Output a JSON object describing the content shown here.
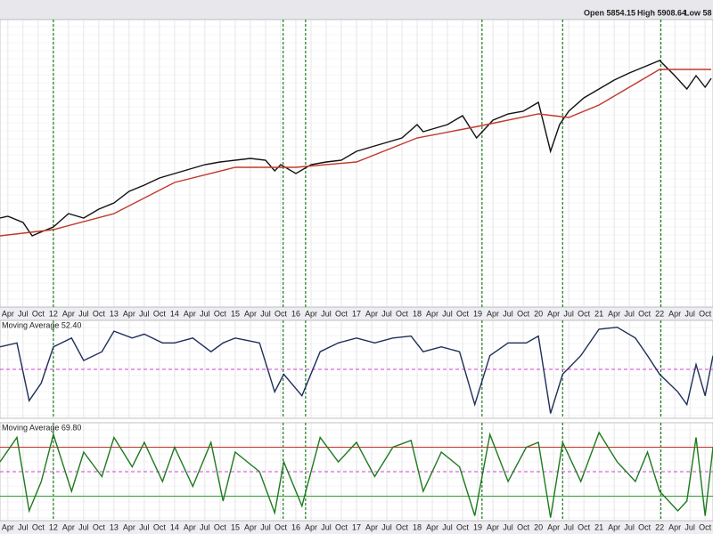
{
  "header": {
    "open": "Open 5854.15",
    "high": "High 5908.64",
    "low": "Low 58"
  },
  "chart_data": [
    {
      "type": "line",
      "xlim": [
        2011.12,
        2022.88
      ],
      "ylim": [
        1000,
        5000
      ],
      "xticks": [
        {
          "value": 2011.25,
          "label": "Apr"
        },
        {
          "value": 2011.5,
          "label": "Jul"
        },
        {
          "value": 2011.75,
          "label": "Oct"
        },
        {
          "value": 2012,
          "label": "12"
        },
        {
          "value": 2012.25,
          "label": "Apr"
        },
        {
          "value": 2012.5,
          "label": "Jul"
        },
        {
          "value": 2012.75,
          "label": "Oct"
        },
        {
          "value": 2013,
          "label": "13"
        },
        {
          "value": 2013.25,
          "label": "Apr"
        },
        {
          "value": 2013.5,
          "label": "Jul"
        },
        {
          "value": 2013.75,
          "label": "Oct"
        },
        {
          "value": 2014,
          "label": "14"
        },
        {
          "value": 2014.25,
          "label": "Apr"
        },
        {
          "value": 2014.5,
          "label": "Jul"
        },
        {
          "value": 2014.75,
          "label": "Oct"
        },
        {
          "value": 2015,
          "label": "15"
        },
        {
          "value": 2015.25,
          "label": "Apr"
        },
        {
          "value": 2015.5,
          "label": "Jul"
        },
        {
          "value": 2015.75,
          "label": "Oct"
        },
        {
          "value": 2016,
          "label": "16"
        },
        {
          "value": 2016.25,
          "label": "Apr"
        },
        {
          "value": 2016.5,
          "label": "Jul"
        },
        {
          "value": 2016.75,
          "label": "Oct"
        },
        {
          "value": 2017,
          "label": "17"
        },
        {
          "value": 2017.25,
          "label": "Apr"
        },
        {
          "value": 2017.5,
          "label": "Jul"
        },
        {
          "value": 2017.75,
          "label": "Oct"
        },
        {
          "value": 2018,
          "label": "18"
        },
        {
          "value": 2018.25,
          "label": "Apr"
        },
        {
          "value": 2018.5,
          "label": "Jul"
        },
        {
          "value": 2018.75,
          "label": "Oct"
        },
        {
          "value": 2019,
          "label": "19"
        },
        {
          "value": 2019.25,
          "label": "Apr"
        },
        {
          "value": 2019.5,
          "label": "Jul"
        },
        {
          "value": 2019.75,
          "label": "Oct"
        },
        {
          "value": 2020,
          "label": "20"
        },
        {
          "value": 2020.25,
          "label": "Apr"
        },
        {
          "value": 2020.5,
          "label": "Jul"
        },
        {
          "value": 2020.75,
          "label": "Oct"
        },
        {
          "value": 2021,
          "label": "21"
        },
        {
          "value": 2021.25,
          "label": "Apr"
        },
        {
          "value": 2021.5,
          "label": "Jul"
        },
        {
          "value": 2021.75,
          "label": "Oct"
        },
        {
          "value": 2022,
          "label": "22"
        },
        {
          "value": 2022.25,
          "label": "Apr"
        },
        {
          "value": 2022.5,
          "label": "Jul"
        },
        {
          "value": 2022.75,
          "label": "Oct"
        }
      ],
      "markers": [
        2012.0,
        2015.79,
        2016.16,
        2019.07,
        2020.4,
        2022.02
      ],
      "marker_color": "#1a7a1a",
      "series": [
        {
          "color": "#111111",
          "x": [
            2011.12,
            2011.25,
            2011.5,
            2011.65,
            2011.75,
            2012.0,
            2012.25,
            2012.5,
            2012.75,
            2013.0,
            2013.25,
            2013.5,
            2013.75,
            2014.0,
            2014.25,
            2014.5,
            2014.75,
            2015.0,
            2015.25,
            2015.5,
            2015.65,
            2015.75,
            2016.0,
            2016.25,
            2016.5,
            2016.75,
            2017.0,
            2017.25,
            2017.5,
            2017.75,
            2018.0,
            2018.1,
            2018.25,
            2018.5,
            2018.75,
            2018.98,
            2019.25,
            2019.5,
            2019.75,
            2020.0,
            2020.2,
            2020.35,
            2020.5,
            2020.75,
            2021.0,
            2021.25,
            2021.5,
            2021.75,
            2022.0,
            2022.25,
            2022.45,
            2022.6,
            2022.75,
            2022.85
          ],
          "values": [
            2238,
            2263,
            2176,
            1991,
            2028,
            2115,
            2300,
            2238,
            2362,
            2449,
            2610,
            2697,
            2796,
            2858,
            2920,
            2981,
            3019,
            3043,
            3068,
            3043,
            2895,
            2981,
            2858,
            2981,
            3019,
            3043,
            3167,
            3229,
            3291,
            3353,
            3539,
            3440,
            3477,
            3539,
            3663,
            3353,
            3601,
            3687,
            3724,
            3848,
            3167,
            3539,
            3724,
            3910,
            4034,
            4158,
            4257,
            4344,
            4430,
            4220,
            4034,
            4220,
            4059,
            4183
          ]
        },
        {
          "color": "#c0392b",
          "x": [
            2011.12,
            2012.0,
            2013.0,
            2014.0,
            2015.0,
            2016.0,
            2017.0,
            2018.0,
            2019.0,
            2020.0,
            2020.5,
            2021.0,
            2022.0,
            2022.85
          ],
          "values": [
            1991,
            2077,
            2300,
            2734,
            2944,
            2944,
            3019,
            3353,
            3514,
            3687,
            3638,
            3811,
            4306,
            4306
          ]
        }
      ]
    },
    {
      "type": "line",
      "title": "Moving Average 52.40",
      "ylim": [
        0,
        100
      ],
      "hlines": [
        {
          "value": 50,
          "color": "#d040d0"
        }
      ],
      "series": [
        {
          "color": "#1f2f5a",
          "x": [
            2011.12,
            2011.4,
            2011.6,
            2011.8,
            2012.0,
            2012.3,
            2012.5,
            2012.8,
            2013.0,
            2013.3,
            2013.5,
            2013.8,
            2014.0,
            2014.3,
            2014.6,
            2014.8,
            2015.0,
            2015.4,
            2015.65,
            2015.8,
            2016.1,
            2016.4,
            2016.7,
            2017.0,
            2017.3,
            2017.6,
            2017.9,
            2018.1,
            2018.4,
            2018.7,
            2018.95,
            2019.2,
            2019.5,
            2019.8,
            2020.0,
            2020.2,
            2020.4,
            2020.7,
            2021.0,
            2021.3,
            2021.6,
            2021.8,
            2022.0,
            2022.3,
            2022.45,
            2022.6,
            2022.75,
            2022.88
          ],
          "values": [
            73,
            77,
            18,
            36,
            73,
            82,
            59,
            68,
            89,
            82,
            86,
            77,
            77,
            82,
            68,
            77,
            82,
            77,
            27,
            45,
            23,
            68,
            77,
            82,
            77,
            82,
            84,
            68,
            73,
            68,
            14,
            64,
            77,
            77,
            84,
            5,
            45,
            64,
            91,
            93,
            82,
            64,
            45,
            27,
            14,
            55,
            23,
            64
          ]
        }
      ]
    },
    {
      "type": "line",
      "title": "Moving Average 69.80",
      "ylim": [
        0,
        100
      ],
      "hlines": [
        {
          "value": 75,
          "color": "#c0392b"
        },
        {
          "value": 50,
          "color": "#d040d0"
        },
        {
          "value": 25,
          "color": "#2e9e2e"
        }
      ],
      "series": [
        {
          "color": "#1e7a1e",
          "x": [
            2011.12,
            2011.4,
            2011.6,
            2011.8,
            2012.0,
            2012.3,
            2012.5,
            2012.8,
            2013.0,
            2013.3,
            2013.5,
            2013.8,
            2014.0,
            2014.3,
            2014.6,
            2014.8,
            2015.0,
            2015.4,
            2015.65,
            2015.8,
            2016.1,
            2016.4,
            2016.7,
            2017.0,
            2017.3,
            2017.6,
            2017.9,
            2018.1,
            2018.4,
            2018.7,
            2018.95,
            2019.2,
            2019.5,
            2019.8,
            2020.0,
            2020.2,
            2020.4,
            2020.7,
            2021.0,
            2021.3,
            2021.6,
            2021.8,
            2022.0,
            2022.3,
            2022.45,
            2022.6,
            2022.75,
            2022.88
          ],
          "values": [
            60,
            85,
            10,
            40,
            88,
            30,
            70,
            45,
            85,
            55,
            80,
            40,
            75,
            35,
            80,
            20,
            70,
            50,
            8,
            60,
            15,
            85,
            60,
            80,
            45,
            75,
            82,
            30,
            70,
            55,
            5,
            88,
            40,
            75,
            80,
            3,
            80,
            40,
            90,
            60,
            40,
            70,
            30,
            10,
            20,
            85,
            5,
            75
          ]
        }
      ]
    }
  ]
}
